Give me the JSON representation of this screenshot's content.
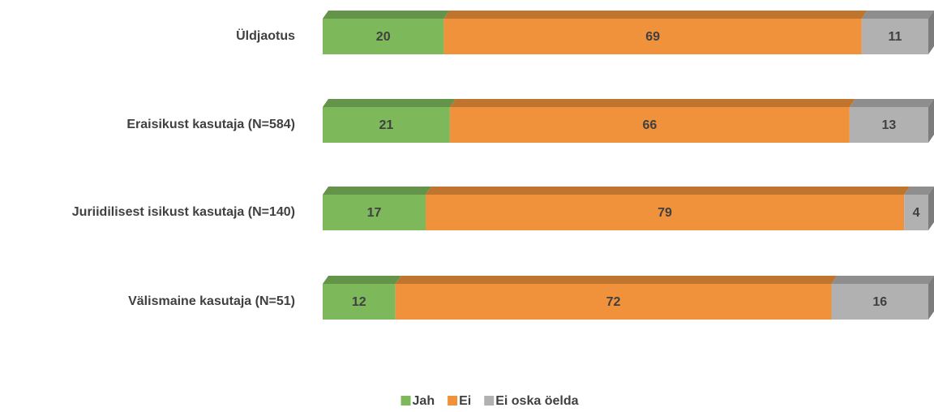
{
  "chart_data": {
    "type": "stacked-bar-horizontal",
    "categories": [
      "Üldjaotus",
      "Eraisikust kasutaja (N=584)",
      "Juriidilisest isikust kasutaja (N=140)",
      "Välismaine kasutaja (N=51)"
    ],
    "series": [
      {
        "name": "Jah",
        "color": "#7db95b",
        "values": [
          20,
          21,
          17,
          12
        ]
      },
      {
        "name": "Ei",
        "color": "#f0923b",
        "values": [
          69,
          66,
          79,
          72
        ]
      },
      {
        "name": "Ei oska öelda",
        "color": "#b1b1b1",
        "values": [
          11,
          13,
          4,
          16
        ]
      }
    ],
    "legend": "bottom"
  }
}
